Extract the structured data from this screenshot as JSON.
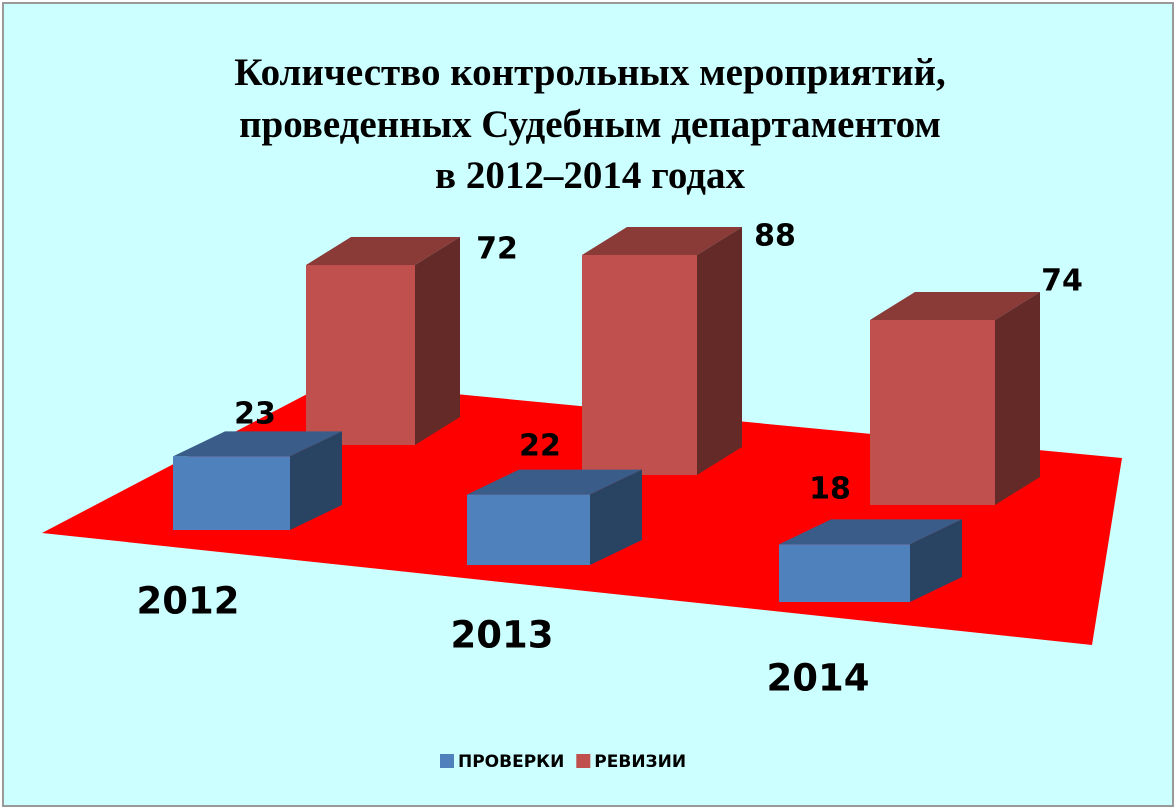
{
  "chart_data": {
    "type": "bar3d",
    "title": [
      "Количество контрольных мероприятий,",
      "проведенных Судебным департаментом",
      "в 2012–2014 годах"
    ],
    "categories": [
      "2012",
      "2013",
      "2014"
    ],
    "series": [
      {
        "name": "ПРОВЕРКИ",
        "color": "#4f81bd",
        "values": [
          23,
          22,
          18
        ]
      },
      {
        "name": "РЕВИЗИИ",
        "color": "#c0504d",
        "values": [
          72,
          88,
          74
        ]
      }
    ],
    "floor_color": "#ff0000",
    "legend": "bottom"
  }
}
